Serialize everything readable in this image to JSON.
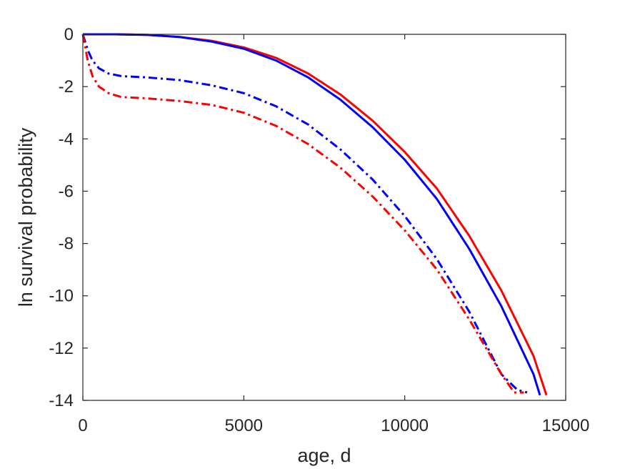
{
  "chart_data": {
    "type": "line",
    "title": "",
    "xlabel": "age, d",
    "ylabel": "ln survival probability",
    "xlim": [
      0,
      15000
    ],
    "ylim": [
      -14,
      0
    ],
    "xticks": [
      0,
      5000,
      10000,
      15000
    ],
    "xtick_labels": [
      "0",
      "5000",
      "10000",
      "15000"
    ],
    "yticks": [
      0,
      -2,
      -4,
      -6,
      -8,
      -10,
      -12,
      -14
    ],
    "ytick_labels": [
      "0",
      "-2",
      "-4",
      "-6",
      "-8",
      "-10",
      "-12",
      "-14"
    ],
    "grid": false,
    "legend": "none",
    "series": [
      {
        "color": "#ff0000",
        "style": "solid",
        "x": [
          0,
          1000,
          2000,
          3000,
          4000,
          5000,
          6000,
          7000,
          8000,
          9000,
          10000,
          11000,
          12000,
          13000,
          14000,
          14400
        ],
        "y": [
          0,
          0,
          -0.02,
          -0.1,
          -0.25,
          -0.5,
          -0.9,
          -1.5,
          -2.3,
          -3.3,
          -4.5,
          -5.9,
          -7.7,
          -9.8,
          -12.3,
          -13.8
        ]
      },
      {
        "color": "#0000ff",
        "style": "solid",
        "x": [
          0,
          1000,
          2000,
          3000,
          4000,
          5000,
          6000,
          7000,
          8000,
          9000,
          10000,
          11000,
          12000,
          13000,
          14000,
          14200
        ],
        "y": [
          0,
          0,
          -0.02,
          -0.1,
          -0.28,
          -0.55,
          -1.0,
          -1.65,
          -2.5,
          -3.55,
          -4.8,
          -6.3,
          -8.2,
          -10.4,
          -13.0,
          -13.8
        ]
      },
      {
        "color": "#0000ff",
        "style": "dashdot",
        "x": [
          0,
          150,
          300,
          500,
          800,
          1200,
          2000,
          3000,
          4000,
          5000,
          6000,
          7000,
          8000,
          9000,
          10000,
          11000,
          12000,
          13000,
          13500,
          13800
        ],
        "y": [
          0,
          -0.6,
          -1.0,
          -1.3,
          -1.5,
          -1.6,
          -1.65,
          -1.75,
          -1.95,
          -2.25,
          -2.75,
          -3.45,
          -4.4,
          -5.55,
          -6.95,
          -8.6,
          -10.6,
          -13.0,
          -13.6,
          -13.7
        ]
      },
      {
        "color": "#ff0000",
        "style": "dashdot",
        "x": [
          0,
          150,
          300,
          500,
          800,
          1200,
          2000,
          3000,
          4000,
          5000,
          6000,
          7000,
          8000,
          9000,
          10000,
          11000,
          12000,
          13000,
          13400,
          13700
        ],
        "y": [
          0,
          -1.0,
          -1.6,
          -2.0,
          -2.25,
          -2.4,
          -2.45,
          -2.55,
          -2.7,
          -3.0,
          -3.5,
          -4.2,
          -5.1,
          -6.2,
          -7.5,
          -9.0,
          -10.9,
          -13.0,
          -13.7,
          -13.7
        ]
      }
    ]
  }
}
